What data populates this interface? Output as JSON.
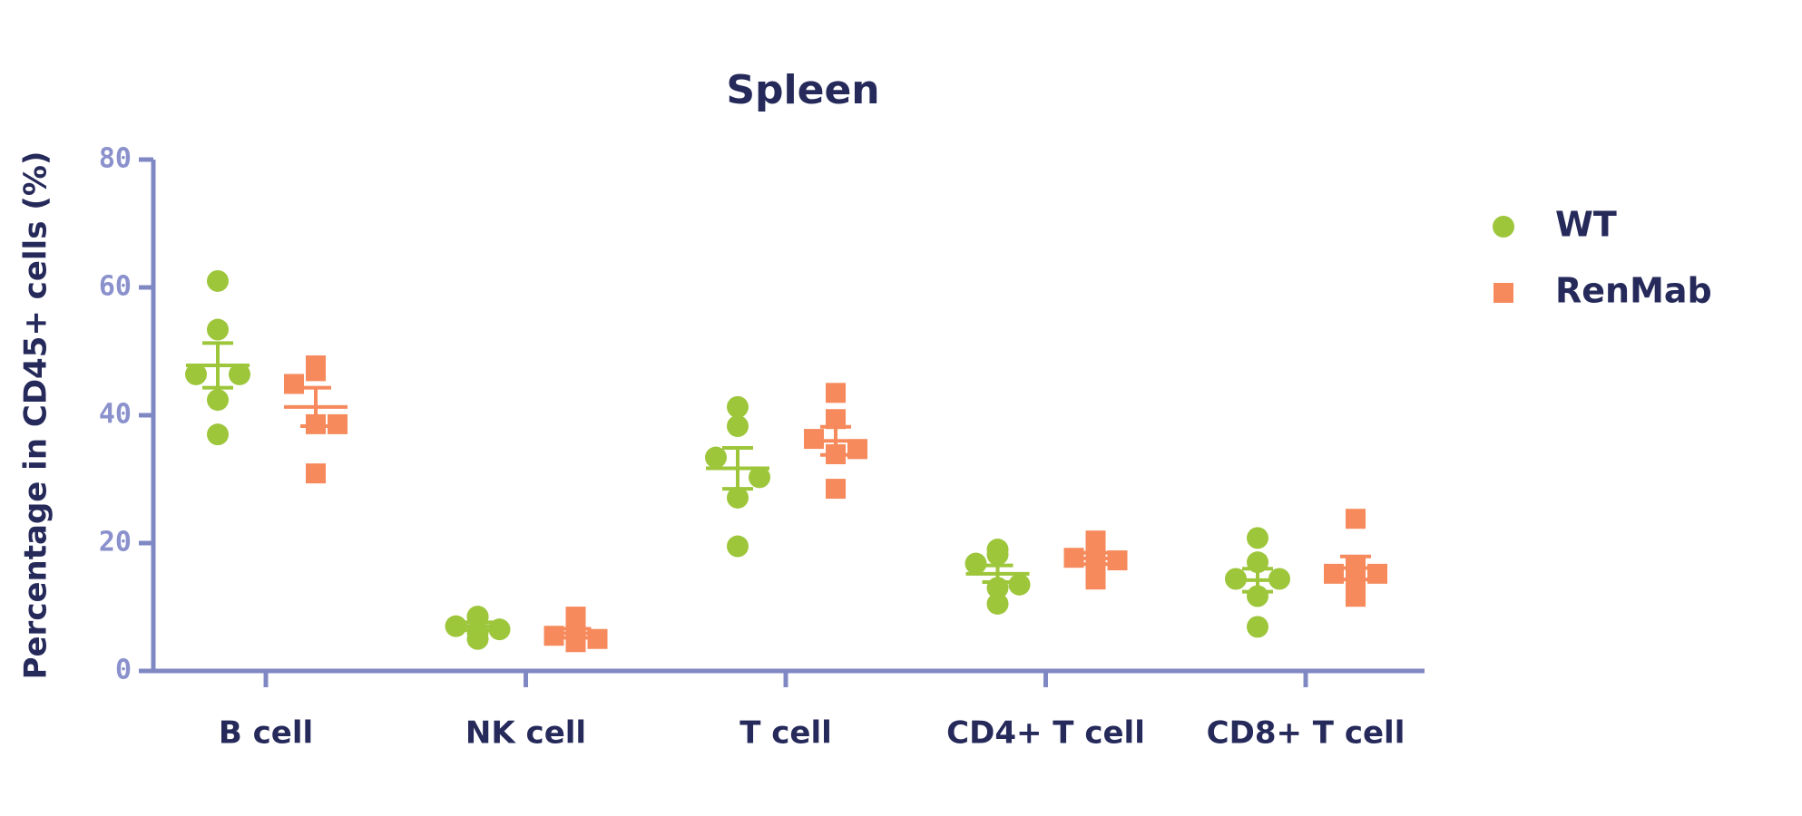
{
  "chart_data": {
    "type": "strip",
    "title": "Spleen",
    "y_label": "Percentage in CD45+ cells (%)",
    "categories": [
      "B cell",
      "NK cell",
      "T cell",
      "CD4+ T cell",
      "CD8+ T cell"
    ],
    "ylim": [
      0,
      80
    ],
    "yticks": [
      0,
      20,
      40,
      60,
      80
    ],
    "series": [
      {
        "name": "WT",
        "color": "#9dc63b",
        "marker": "circle",
        "values": [
          [
            61,
            53.4,
            46.4,
            46.4,
            42.4,
            37
          ],
          [
            8.5,
            8.5,
            7,
            6.5,
            6,
            5
          ],
          [
            41.3,
            38.3,
            33.4,
            30.3,
            27.1,
            19.5
          ],
          [
            19,
            18.2,
            16.8,
            13.5,
            13,
            10.5
          ],
          [
            20.8,
            17,
            14.4,
            14.4,
            11.7,
            6.9
          ]
        ],
        "mean": [
          47.8,
          7,
          31.7,
          15.2,
          14.2
        ],
        "sem": [
          3.5,
          0.6,
          3.2,
          1.3,
          1.8
        ]
      },
      {
        "name": "RenMab",
        "color": "#f68a5c",
        "marker": "square",
        "values": [
          [
            47.8,
            46.9,
            44.9,
            38.6,
            38.6,
            30.9
          ],
          [
            8.5,
            6.5,
            5.5,
            5,
            4.5,
            5.5
          ],
          [
            43.5,
            39.4,
            36.3,
            34.7,
            33.9,
            28.5
          ],
          [
            20.4,
            19.1,
            17.7,
            17.3,
            16.8,
            14.3
          ],
          [
            23.8,
            16.4,
            15.2,
            15.2,
            14.3,
            11.6
          ]
        ],
        "mean": [
          41.3,
          5.9,
          36,
          17.6,
          16.1
        ],
        "sem": [
          3,
          0.7,
          2.2,
          0.9,
          1.8
        ]
      }
    ]
  }
}
